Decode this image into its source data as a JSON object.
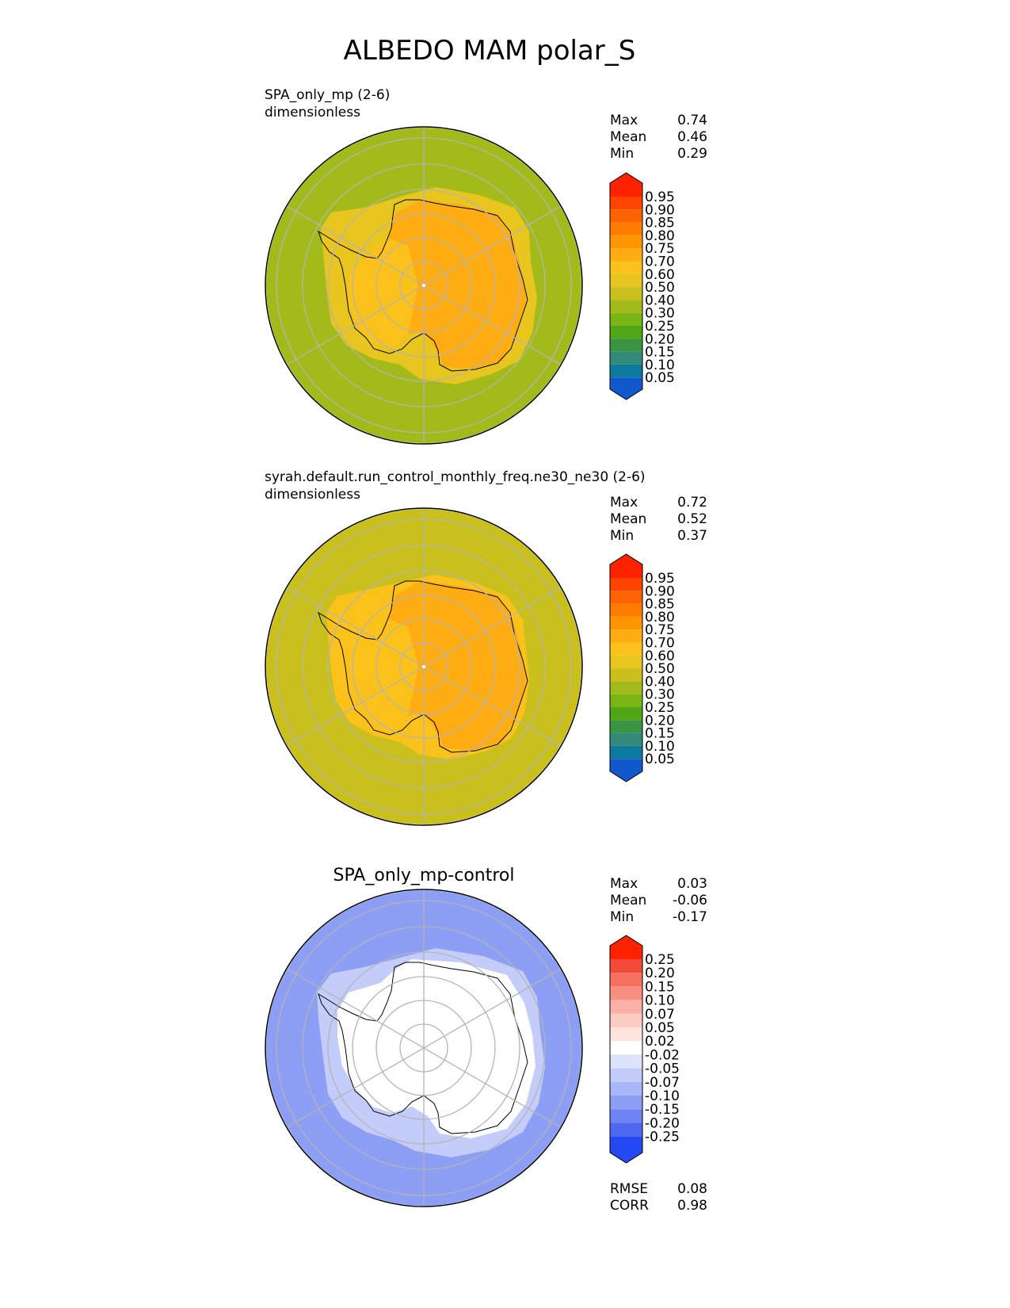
{
  "title": "ALBEDO MAM polar_S",
  "chart_data": [
    {
      "type": "heatmap",
      "projection": "south-polar-stereographic",
      "title_line1": "SPA_only_mp (2-6)",
      "title_line2": "dimensionless",
      "stats": [
        {
          "label": "Max",
          "value": "0.74"
        },
        {
          "label": "Mean",
          "value": "0.46"
        },
        {
          "label": "Min",
          "value": "0.29"
        }
      ],
      "colorbar": {
        "ticks": [
          "0.95",
          "0.90",
          "0.85",
          "0.80",
          "0.75",
          "0.70",
          "0.60",
          "0.50",
          "0.40",
          "0.30",
          "0.25",
          "0.20",
          "0.15",
          "0.10",
          "0.05"
        ],
        "colors": [
          "#ff2200",
          "#ff4400",
          "#ff6200",
          "#ff7c00",
          "#ff9600",
          "#ffad12",
          "#fbc21c",
          "#e8c51f",
          "#c9c01e",
          "#a3bb1a",
          "#7ab515",
          "#50a616",
          "#3a9442",
          "#338a78",
          "#0b7a9c",
          "#1158cc",
          "#0a3bff"
        ]
      },
      "field": {
        "ocean": 0.35,
        "coast": 0.55,
        "interior": 0.72,
        "west": 0.66
      }
    },
    {
      "type": "heatmap",
      "projection": "south-polar-stereographic",
      "title_line1": "syrah.default.run_control_monthly_freq.ne30_ne30 (2-6)",
      "title_line2": "dimensionless",
      "stats": [
        {
          "label": "Max",
          "value": "0.72"
        },
        {
          "label": "Mean",
          "value": "0.52"
        },
        {
          "label": "Min",
          "value": "0.37"
        }
      ],
      "colorbar": {
        "ticks": [
          "0.95",
          "0.90",
          "0.85",
          "0.80",
          "0.75",
          "0.70",
          "0.60",
          "0.50",
          "0.40",
          "0.30",
          "0.25",
          "0.20",
          "0.15",
          "0.10",
          "0.05"
        ],
        "colors": [
          "#ff2200",
          "#ff4400",
          "#ff6200",
          "#ff7c00",
          "#ff9600",
          "#ffad12",
          "#fbc21c",
          "#e8c51f",
          "#c9c01e",
          "#a3bb1a",
          "#7ab515",
          "#50a616",
          "#3a9442",
          "#338a78",
          "#0b7a9c",
          "#1158cc",
          "#0a3bff"
        ]
      },
      "field": {
        "ocean": 0.45,
        "coast": 0.6,
        "interior": 0.72,
        "west": 0.66
      }
    },
    {
      "type": "heatmap",
      "projection": "south-polar-stereographic",
      "title_center": "SPA_only_mp-control",
      "stats": [
        {
          "label": "Max",
          "value": "0.03"
        },
        {
          "label": "Mean",
          "value": "-0.06"
        },
        {
          "label": "Min",
          "value": "-0.17"
        }
      ],
      "colorbar": {
        "ticks": [
          "0.25",
          "0.20",
          "0.15",
          "0.10",
          "0.07",
          "0.05",
          "0.02",
          "-0.02",
          "-0.05",
          "-0.07",
          "-0.10",
          "-0.15",
          "-0.20",
          "-0.25"
        ],
        "colors": [
          "#ff2200",
          "#f44a3a",
          "#f6705f",
          "#f88f80",
          "#fbb1a5",
          "#fccdc4",
          "#fde4df",
          "#ffffff",
          "#dde3fb",
          "#c4cdf9",
          "#a9b6f7",
          "#8d9ef5",
          "#6f84f3",
          "#4e68f2",
          "#2449f4",
          "#0a2dff"
        ]
      },
      "field": {
        "ocean": -0.11,
        "coast": -0.06,
        "interior": 0.0,
        "west": 0.0
      },
      "extra_stats": [
        {
          "label": "RMSE",
          "value": "0.08"
        },
        {
          "label": "CORR",
          "value": "0.98"
        }
      ]
    }
  ]
}
